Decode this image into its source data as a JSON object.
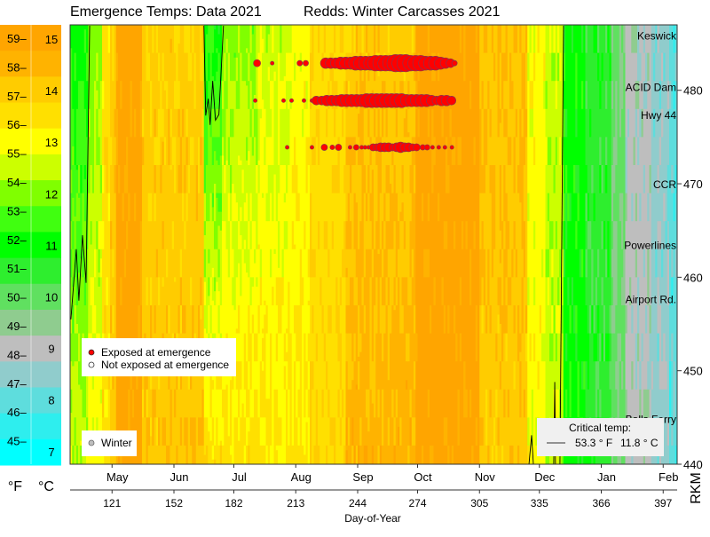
{
  "title_left": "Emergence  Temps: Data 2021",
  "title_right": "Redds: Winter Carcasses 2021",
  "color_scale": {
    "unit_f_label": "°F",
    "unit_c_label": "°C",
    "fahrenheit_ticks": [
      "59",
      "58",
      "57",
      "56",
      "55",
      "54",
      "53",
      "52",
      "51",
      "50",
      "49",
      "48",
      "47",
      "46",
      "45"
    ],
    "celsius_ticks": [
      "15",
      "14",
      "13",
      "12",
      "11",
      "10",
      "9",
      "8",
      "7"
    ],
    "bin_colors": [
      "#FFA500",
      "#FFB300",
      "#FFCC00",
      "#FFE000",
      "#FFFF00",
      "#CCFF00",
      "#80FF00",
      "#40FF10",
      "#00FF00",
      "#2EEE2E",
      "#60E060",
      "#8FCC8F",
      "#BEBEBE",
      "#90CCCC",
      "#5EDDDD",
      "#2EEEEE",
      "#00FFFF"
    ]
  },
  "legend_exposure": {
    "exposed_label": "Exposed at emergence",
    "not_exposed_label": "Not exposed at emergence",
    "exposed_color": "#FF0000"
  },
  "legend_run": {
    "winter_label": "Winter",
    "winter_color": "#BEBEBE"
  },
  "legend_critical": {
    "title": "Critical temp:",
    "value_f": "53.3 ° F",
    "value_c": "11.8 ° C"
  },
  "chart_data": {
    "type": "heatmap",
    "xlabel": "Day-of-Year",
    "ylabel": "RKM",
    "xlim": [
      100,
      404
    ],
    "ylim": [
      440,
      487
    ],
    "grid": false,
    "x_ticks": [
      "121",
      "152",
      "182",
      "213",
      "244",
      "274",
      "305",
      "335",
      "366",
      "397"
    ],
    "month_ticks": [
      {
        "label": "May",
        "day": 121
      },
      {
        "label": "Jun",
        "day": 152
      },
      {
        "label": "Jul",
        "day": 182
      },
      {
        "label": "Aug",
        "day": 213
      },
      {
        "label": "Sep",
        "day": 244
      },
      {
        "label": "Oct",
        "day": 274
      },
      {
        "label": "Nov",
        "day": 305
      },
      {
        "label": "Dec",
        "day": 335
      },
      {
        "label": "Jan",
        "day": 366
      },
      {
        "label": "Feb",
        "day": 397
      }
    ],
    "y_ticks": [
      "440",
      "450",
      "460",
      "470",
      "480"
    ],
    "sites": [
      {
        "label": "Keswick",
        "rkm": 485.8
      },
      {
        "label": "ACID Dam",
        "rkm": 480.3
      },
      {
        "label": "Hwy 44",
        "rkm": 477.3
      },
      {
        "label": "CCR",
        "rkm": 469.9
      },
      {
        "label": "Powerlines",
        "rkm": 463.4
      },
      {
        "label": "Airport Rd.",
        "rkm": 457.6
      },
      {
        "label": "Balls Ferry",
        "rkm": 444.8
      }
    ],
    "heatmap_segments_celsius": [
      {
        "days": [
          100,
          109
        ],
        "upstream": 11.0,
        "downstream": 12.5
      },
      {
        "days": [
          109,
          116
        ],
        "upstream": 12.0,
        "downstream": 13.0
      },
      {
        "days": [
          116,
          120
        ],
        "upstream": 13.5,
        "downstream": 13.5
      },
      {
        "days": [
          120,
          123
        ],
        "upstream": 14.0,
        "downstream": 14.0
      },
      {
        "days": [
          123,
          136
        ],
        "upstream": 15.0,
        "downstream": 15.0
      },
      {
        "days": [
          136,
          167
        ],
        "upstream": 13.9,
        "downstream": 14.1
      },
      {
        "days": [
          167,
          176
        ],
        "upstream": 11.0,
        "downstream": 13.6
      },
      {
        "days": [
          176,
          194
        ],
        "upstream": 12.0,
        "downstream": 13.5
      },
      {
        "days": [
          194,
          211
        ],
        "upstream": 12.5,
        "downstream": 13.4
      },
      {
        "days": [
          211,
          220
        ],
        "upstream": 13.0,
        "downstream": 13.3
      },
      {
        "days": [
          220,
          238
        ],
        "upstream": 13.6,
        "downstream": 13.6
      },
      {
        "days": [
          238,
          273
        ],
        "upstream": 14.0,
        "downstream": 14.5
      },
      {
        "days": [
          273,
          305
        ],
        "upstream": 15.0,
        "downstream": 15.0
      },
      {
        "days": [
          305,
          329
        ],
        "upstream": 14.2,
        "downstream": 14.0
      },
      {
        "days": [
          329,
          338
        ],
        "upstream": 13.0,
        "downstream": 13.0
      },
      {
        "days": [
          338,
          347
        ],
        "upstream": 12.5,
        "downstream": 12.5
      },
      {
        "days": [
          347,
          358
        ],
        "upstream": 11.0,
        "downstream": 11.0
      },
      {
        "days": [
          358,
          371
        ],
        "upstream": 10.5,
        "downstream": 10.5
      },
      {
        "days": [
          371,
          378
        ],
        "upstream": 9.8,
        "downstream": 9.8
      },
      {
        "days": [
          378,
          391
        ],
        "upstream": 9.0,
        "downstream": 9.0
      },
      {
        "days": [
          391,
          400
        ],
        "upstream": 8.5,
        "downstream": 8.5
      },
      {
        "days": [
          400,
          404
        ],
        "upstream": 8.0,
        "downstream": 8.0
      }
    ],
    "critical_contours": [
      [
        [
          100.4,
          455.5
        ],
        [
          103.1,
          463.0
        ],
        [
          104.4,
          457.5
        ],
        [
          106.2,
          464.5
        ],
        [
          108.0,
          459.4
        ],
        [
          109.8,
          486.9
        ]
      ],
      [
        [
          167.0,
          486.9
        ],
        [
          167.9,
          477.3
        ],
        [
          169.2,
          479.1
        ],
        [
          170.1,
          476.3
        ],
        [
          171.4,
          481.0
        ],
        [
          172.8,
          476.8
        ],
        [
          174.5,
          477.4
        ],
        [
          176.8,
          486.9
        ]
      ],
      [
        [
          347.1,
          486.9
        ],
        [
          345.3,
          440
        ]
      ],
      [
        [
          329.8,
          440
        ],
        [
          331.1,
          443.1
        ],
        [
          332.0,
          440
        ]
      ],
      [
        [
          342.2,
          440
        ],
        [
          342.7,
          448.8
        ],
        [
          343.1,
          440
        ]
      ]
    ],
    "redd_rows": [
      {
        "rkm": 482.9,
        "points": [
          [
            193.6,
            3
          ],
          [
            201.2,
            1
          ],
          [
            215,
            2
          ],
          [
            218,
            2
          ],
          [
            228,
            5
          ],
          [
            230.5,
            5
          ],
          [
            233,
            5
          ],
          [
            235.5,
            6
          ],
          [
            238,
            6
          ],
          [
            240.5,
            6
          ],
          [
            243,
            7
          ],
          [
            245.5,
            7
          ],
          [
            248,
            7
          ],
          [
            250.5,
            7
          ],
          [
            253,
            8
          ],
          [
            255.5,
            8
          ],
          [
            258,
            8
          ],
          [
            260.5,
            8
          ],
          [
            263,
            9
          ],
          [
            265.5,
            9
          ],
          [
            268,
            9
          ],
          [
            270.5,
            8
          ],
          [
            273,
            8
          ],
          [
            275.5,
            8
          ],
          [
            278,
            7
          ],
          [
            280.5,
            7
          ],
          [
            283,
            7
          ],
          [
            285.5,
            6
          ],
          [
            288,
            5
          ],
          [
            290.5,
            4
          ],
          [
            292.5,
            2
          ]
        ]
      },
      {
        "rkm": 478.9,
        "points": [
          [
            192.7,
            1
          ],
          [
            206.9,
            1
          ],
          [
            210.9,
            1
          ],
          [
            217.1,
            1
          ],
          [
            221.1,
            1
          ],
          [
            223.3,
            4
          ],
          [
            226,
            4
          ],
          [
            228.5,
            5
          ],
          [
            231,
            5
          ],
          [
            233.5,
            5
          ],
          [
            236,
            6
          ],
          [
            238.5,
            6
          ],
          [
            241,
            6
          ],
          [
            243.5,
            6
          ],
          [
            246,
            6
          ],
          [
            248.5,
            7
          ],
          [
            251,
            7
          ],
          [
            253.5,
            7
          ],
          [
            256,
            7
          ],
          [
            258.5,
            7
          ],
          [
            261,
            7
          ],
          [
            263.5,
            7
          ],
          [
            266,
            7
          ],
          [
            268.5,
            6
          ],
          [
            271,
            6
          ],
          [
            273.5,
            6
          ],
          [
            276,
            6
          ],
          [
            278.5,
            6
          ],
          [
            281,
            5
          ],
          [
            283.5,
            4
          ],
          [
            286,
            5
          ],
          [
            288.5,
            5
          ],
          [
            291,
            4
          ]
        ]
      },
      {
        "rkm": 473.9,
        "points": [
          [
            208.7,
            1
          ],
          [
            221.1,
            1
          ],
          [
            227.3,
            2.5
          ],
          [
            231.3,
            1.5
          ],
          [
            234.4,
            2.5
          ],
          [
            240.2,
            1
          ],
          [
            243.3,
            2
          ],
          [
            246,
            1
          ],
          [
            247.7,
            1
          ],
          [
            249.5,
            1
          ],
          [
            251.7,
            3
          ],
          [
            253.5,
            3
          ],
          [
            255.5,
            4
          ],
          [
            257.5,
            4
          ],
          [
            259.5,
            4
          ],
          [
            261.5,
            3
          ],
          [
            263.5,
            4
          ],
          [
            265.5,
            5
          ],
          [
            267.5,
            4
          ],
          [
            269.5,
            4
          ],
          [
            271.5,
            3
          ],
          [
            273.5,
            3
          ],
          [
            276.6,
            2
          ],
          [
            278.8,
            2
          ],
          [
            281.5,
            1
          ],
          [
            284.6,
            1
          ],
          [
            287.7,
            1
          ],
          [
            291.2,
            1
          ]
        ]
      }
    ]
  }
}
